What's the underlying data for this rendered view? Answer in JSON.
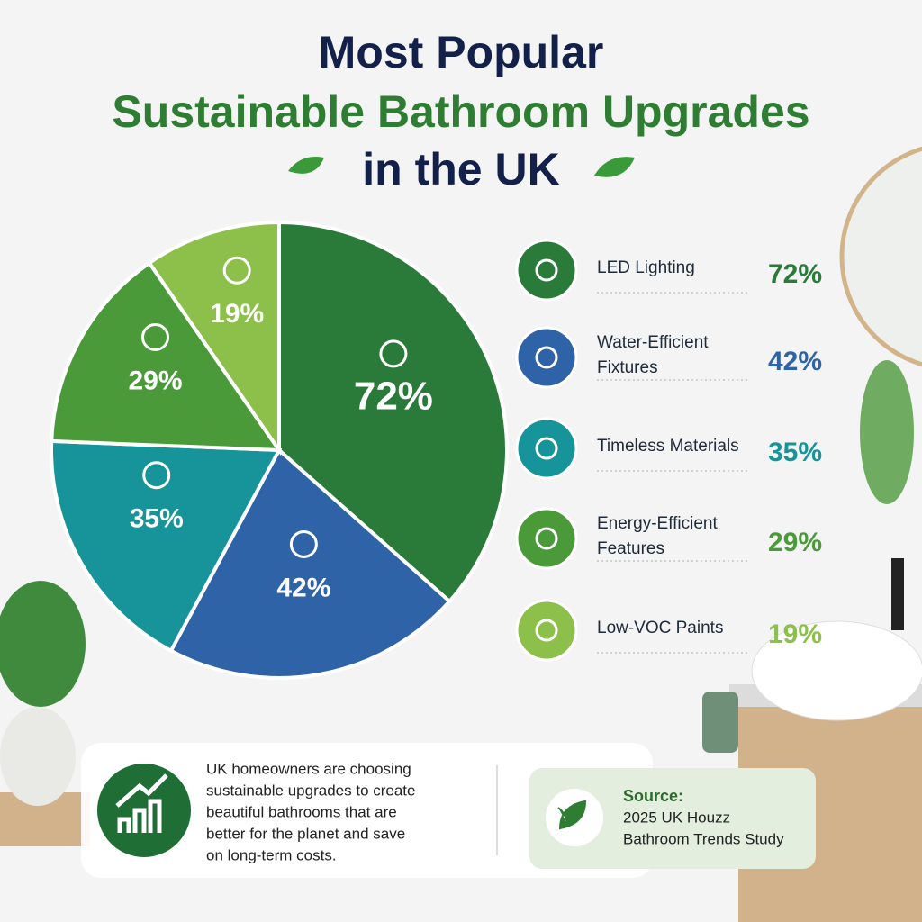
{
  "chart_data": {
    "type": "pie",
    "title": [
      "Most Popular",
      "Sustainable Bathroom Upgrades",
      "in the UK"
    ],
    "categories": [
      "LED Lighting",
      "Water-Efficient Fixtures",
      "Timeless Materials",
      "Energy-Efficient Features",
      "Low-VOC Paints"
    ],
    "values": [
      72,
      42,
      35,
      29,
      19
    ],
    "value_labels": [
      "72%",
      "42%",
      "35%",
      "29%",
      "19%"
    ],
    "colors": [
      "#2a7a3a",
      "#2f63a8",
      "#17939a",
      "#4b9a3a",
      "#8cc04a"
    ],
    "note": [
      "UK homeowners are choosing",
      "sustainable upgrades to create",
      "beautiful bathrooms that are",
      "better for the planet and save",
      "on long-term costs."
    ],
    "source": [
      "Source:",
      "2025 UK Houzz",
      "Bathroom Trends Study"
    ]
  }
}
